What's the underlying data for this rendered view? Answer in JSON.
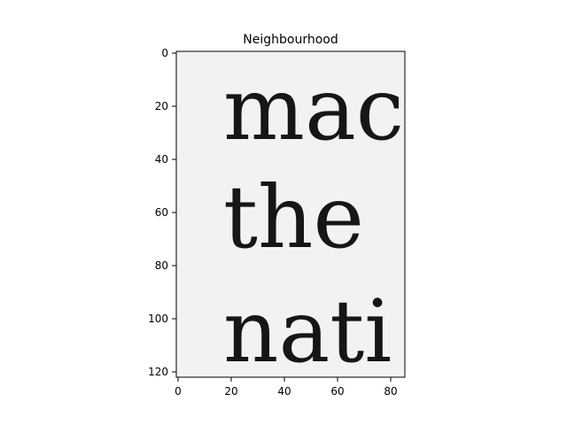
{
  "figure": {
    "title": "Neighbourhood",
    "x_ticks": [
      "0",
      "20",
      "40",
      "60",
      "80"
    ],
    "y_ticks": [
      "0",
      "20",
      "40",
      "60",
      "80",
      "100",
      "120"
    ],
    "image_words": [
      "mac",
      "the",
      "nati"
    ],
    "colors": {
      "background": "#ffffff",
      "image_paper": "#f2f2f2",
      "ink": "#161616",
      "axes": "#000000"
    }
  }
}
